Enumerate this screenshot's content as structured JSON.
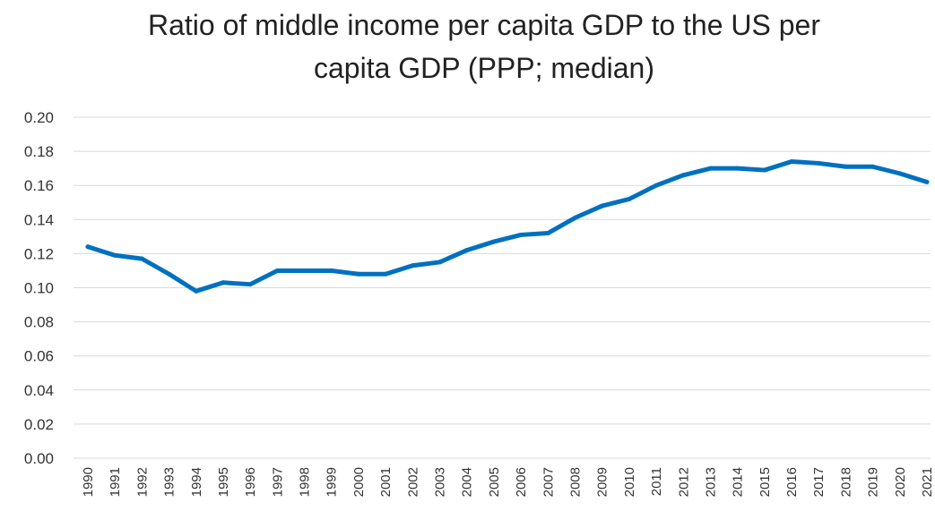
{
  "chart_data": {
    "type": "line",
    "title_lines": [
      "Ratio of middle income per capita GDP to the US per",
      "capita GDP (PPP; median)"
    ],
    "title": "Ratio of middle income per capita GDP to the US per capita GDP (PPP; median)",
    "xlabel": "",
    "ylabel": "",
    "x": [
      "1990",
      "1991",
      "1992",
      "1993",
      "1994",
      "1995",
      "1996",
      "1997",
      "1998",
      "1999",
      "2000",
      "2001",
      "2002",
      "2003",
      "2004",
      "2005",
      "2006",
      "2007",
      "2008",
      "2009",
      "2010",
      "2011",
      "2012",
      "2013",
      "2014",
      "2015",
      "2016",
      "2017",
      "2018",
      "2019",
      "2020",
      "2021"
    ],
    "y_ticks": [
      "0.00",
      "0.02",
      "0.04",
      "0.06",
      "0.08",
      "0.10",
      "0.12",
      "0.14",
      "0.16",
      "0.18",
      "0.20"
    ],
    "ylim": [
      0,
      0.2
    ],
    "grid": true,
    "legend": "none",
    "series": [
      {
        "color": "#0070c0",
        "values": [
          0.124,
          0.119,
          0.117,
          0.108,
          0.098,
          0.103,
          0.102,
          0.11,
          0.11,
          0.11,
          0.108,
          0.108,
          0.113,
          0.115,
          0.122,
          0.127,
          0.131,
          0.132,
          0.141,
          0.148,
          0.152,
          0.16,
          0.166,
          0.17,
          0.17,
          0.169,
          0.174,
          0.173,
          0.171,
          0.171,
          0.167,
          0.162
        ]
      }
    ]
  }
}
